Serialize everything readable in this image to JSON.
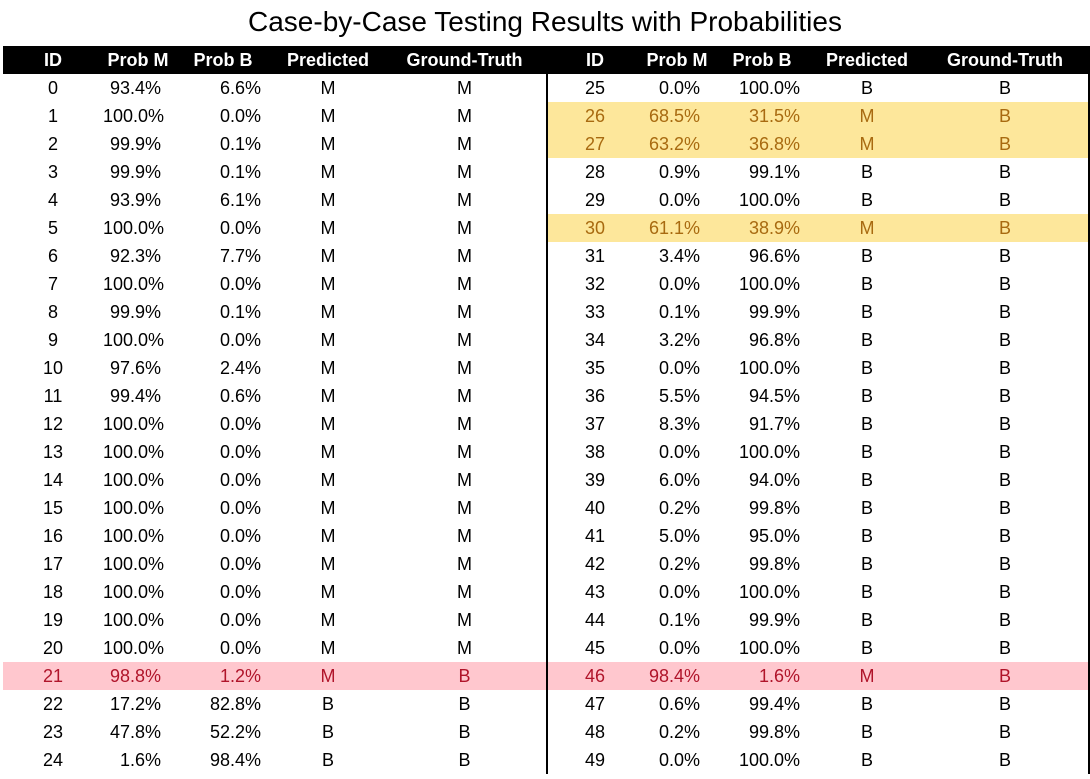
{
  "title": "Case-by-Case Testing Results with Probabilities",
  "headers": [
    "ID",
    "Prob M",
    "Prob B",
    "Predicted",
    "Ground-Truth"
  ],
  "highlight_colors": {
    "yellow": "#fde79b",
    "pink": "#ffc7ce"
  },
  "left_rows": [
    {
      "id": "0",
      "prob_m": "93.4%",
      "prob_b": "6.6%",
      "predicted": "M",
      "truth": "M",
      "highlight": ""
    },
    {
      "id": "1",
      "prob_m": "100.0%",
      "prob_b": "0.0%",
      "predicted": "M",
      "truth": "M",
      "highlight": ""
    },
    {
      "id": "2",
      "prob_m": "99.9%",
      "prob_b": "0.1%",
      "predicted": "M",
      "truth": "M",
      "highlight": ""
    },
    {
      "id": "3",
      "prob_m": "99.9%",
      "prob_b": "0.1%",
      "predicted": "M",
      "truth": "M",
      "highlight": ""
    },
    {
      "id": "4",
      "prob_m": "93.9%",
      "prob_b": "6.1%",
      "predicted": "M",
      "truth": "M",
      "highlight": ""
    },
    {
      "id": "5",
      "prob_m": "100.0%",
      "prob_b": "0.0%",
      "predicted": "M",
      "truth": "M",
      "highlight": ""
    },
    {
      "id": "6",
      "prob_m": "92.3%",
      "prob_b": "7.7%",
      "predicted": "M",
      "truth": "M",
      "highlight": ""
    },
    {
      "id": "7",
      "prob_m": "100.0%",
      "prob_b": "0.0%",
      "predicted": "M",
      "truth": "M",
      "highlight": ""
    },
    {
      "id": "8",
      "prob_m": "99.9%",
      "prob_b": "0.1%",
      "predicted": "M",
      "truth": "M",
      "highlight": ""
    },
    {
      "id": "9",
      "prob_m": "100.0%",
      "prob_b": "0.0%",
      "predicted": "M",
      "truth": "M",
      "highlight": ""
    },
    {
      "id": "10",
      "prob_m": "97.6%",
      "prob_b": "2.4%",
      "predicted": "M",
      "truth": "M",
      "highlight": ""
    },
    {
      "id": "11",
      "prob_m": "99.4%",
      "prob_b": "0.6%",
      "predicted": "M",
      "truth": "M",
      "highlight": ""
    },
    {
      "id": "12",
      "prob_m": "100.0%",
      "prob_b": "0.0%",
      "predicted": "M",
      "truth": "M",
      "highlight": ""
    },
    {
      "id": "13",
      "prob_m": "100.0%",
      "prob_b": "0.0%",
      "predicted": "M",
      "truth": "M",
      "highlight": ""
    },
    {
      "id": "14",
      "prob_m": "100.0%",
      "prob_b": "0.0%",
      "predicted": "M",
      "truth": "M",
      "highlight": ""
    },
    {
      "id": "15",
      "prob_m": "100.0%",
      "prob_b": "0.0%",
      "predicted": "M",
      "truth": "M",
      "highlight": ""
    },
    {
      "id": "16",
      "prob_m": "100.0%",
      "prob_b": "0.0%",
      "predicted": "M",
      "truth": "M",
      "highlight": ""
    },
    {
      "id": "17",
      "prob_m": "100.0%",
      "prob_b": "0.0%",
      "predicted": "M",
      "truth": "M",
      "highlight": ""
    },
    {
      "id": "18",
      "prob_m": "100.0%",
      "prob_b": "0.0%",
      "predicted": "M",
      "truth": "M",
      "highlight": ""
    },
    {
      "id": "19",
      "prob_m": "100.0%",
      "prob_b": "0.0%",
      "predicted": "M",
      "truth": "M",
      "highlight": ""
    },
    {
      "id": "20",
      "prob_m": "100.0%",
      "prob_b": "0.0%",
      "predicted": "M",
      "truth": "M",
      "highlight": ""
    },
    {
      "id": "21",
      "prob_m": "98.8%",
      "prob_b": "1.2%",
      "predicted": "M",
      "truth": "B",
      "highlight": "pink"
    },
    {
      "id": "22",
      "prob_m": "17.2%",
      "prob_b": "82.8%",
      "predicted": "B",
      "truth": "B",
      "highlight": ""
    },
    {
      "id": "23",
      "prob_m": "47.8%",
      "prob_b": "52.2%",
      "predicted": "B",
      "truth": "B",
      "highlight": ""
    },
    {
      "id": "24",
      "prob_m": "1.6%",
      "prob_b": "98.4%",
      "predicted": "B",
      "truth": "B",
      "highlight": ""
    }
  ],
  "right_rows": [
    {
      "id": "25",
      "prob_m": "0.0%",
      "prob_b": "100.0%",
      "predicted": "B",
      "truth": "B",
      "highlight": ""
    },
    {
      "id": "26",
      "prob_m": "68.5%",
      "prob_b": "31.5%",
      "predicted": "M",
      "truth": "B",
      "highlight": "yellow"
    },
    {
      "id": "27",
      "prob_m": "63.2%",
      "prob_b": "36.8%",
      "predicted": "M",
      "truth": "B",
      "highlight": "yellow"
    },
    {
      "id": "28",
      "prob_m": "0.9%",
      "prob_b": "99.1%",
      "predicted": "B",
      "truth": "B",
      "highlight": ""
    },
    {
      "id": "29",
      "prob_m": "0.0%",
      "prob_b": "100.0%",
      "predicted": "B",
      "truth": "B",
      "highlight": ""
    },
    {
      "id": "30",
      "prob_m": "61.1%",
      "prob_b": "38.9%",
      "predicted": "M",
      "truth": "B",
      "highlight": "yellow"
    },
    {
      "id": "31",
      "prob_m": "3.4%",
      "prob_b": "96.6%",
      "predicted": "B",
      "truth": "B",
      "highlight": ""
    },
    {
      "id": "32",
      "prob_m": "0.0%",
      "prob_b": "100.0%",
      "predicted": "B",
      "truth": "B",
      "highlight": ""
    },
    {
      "id": "33",
      "prob_m": "0.1%",
      "prob_b": "99.9%",
      "predicted": "B",
      "truth": "B",
      "highlight": ""
    },
    {
      "id": "34",
      "prob_m": "3.2%",
      "prob_b": "96.8%",
      "predicted": "B",
      "truth": "B",
      "highlight": ""
    },
    {
      "id": "35",
      "prob_m": "0.0%",
      "prob_b": "100.0%",
      "predicted": "B",
      "truth": "B",
      "highlight": ""
    },
    {
      "id": "36",
      "prob_m": "5.5%",
      "prob_b": "94.5%",
      "predicted": "B",
      "truth": "B",
      "highlight": ""
    },
    {
      "id": "37",
      "prob_m": "8.3%",
      "prob_b": "91.7%",
      "predicted": "B",
      "truth": "B",
      "highlight": ""
    },
    {
      "id": "38",
      "prob_m": "0.0%",
      "prob_b": "100.0%",
      "predicted": "B",
      "truth": "B",
      "highlight": ""
    },
    {
      "id": "39",
      "prob_m": "6.0%",
      "prob_b": "94.0%",
      "predicted": "B",
      "truth": "B",
      "highlight": ""
    },
    {
      "id": "40",
      "prob_m": "0.2%",
      "prob_b": "99.8%",
      "predicted": "B",
      "truth": "B",
      "highlight": ""
    },
    {
      "id": "41",
      "prob_m": "5.0%",
      "prob_b": "95.0%",
      "predicted": "B",
      "truth": "B",
      "highlight": ""
    },
    {
      "id": "42",
      "prob_m": "0.2%",
      "prob_b": "99.8%",
      "predicted": "B",
      "truth": "B",
      "highlight": ""
    },
    {
      "id": "43",
      "prob_m": "0.0%",
      "prob_b": "100.0%",
      "predicted": "B",
      "truth": "B",
      "highlight": ""
    },
    {
      "id": "44",
      "prob_m": "0.1%",
      "prob_b": "99.9%",
      "predicted": "B",
      "truth": "B",
      "highlight": ""
    },
    {
      "id": "45",
      "prob_m": "0.0%",
      "prob_b": "100.0%",
      "predicted": "B",
      "truth": "B",
      "highlight": ""
    },
    {
      "id": "46",
      "prob_m": "98.4%",
      "prob_b": "1.6%",
      "predicted": "M",
      "truth": "B",
      "highlight": "pink"
    },
    {
      "id": "47",
      "prob_m": "0.6%",
      "prob_b": "99.4%",
      "predicted": "B",
      "truth": "B",
      "highlight": ""
    },
    {
      "id": "48",
      "prob_m": "0.2%",
      "prob_b": "99.8%",
      "predicted": "B",
      "truth": "B",
      "highlight": ""
    },
    {
      "id": "49",
      "prob_m": "0.0%",
      "prob_b": "100.0%",
      "predicted": "B",
      "truth": "B",
      "highlight": ""
    }
  ]
}
